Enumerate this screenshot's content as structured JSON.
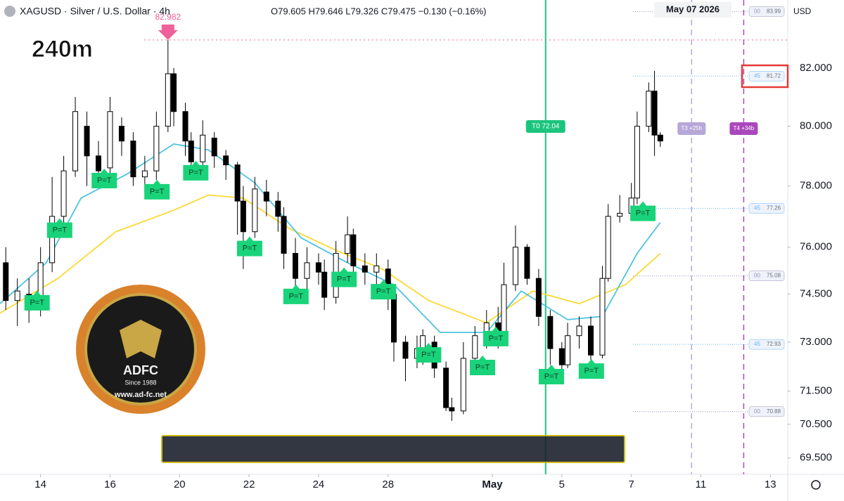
{
  "chart_data": {
    "type": "candlestick",
    "title": "XAGUSD · Silver / U.S. Dollar · 4h",
    "subtitle": "O79.605 H79.646 L79.326 C79.475 −0.130 (−0.16%)",
    "timeframe_label": "240m",
    "date_label": "May 07 2026",
    "currency": "USD",
    "log_scale": true,
    "xlim": [
      0,
      136
    ],
    "ylim": [
      69.02,
      84.4
    ],
    "xticks": [
      {
        "value": 7,
        "label": "14"
      },
      {
        "value": 19,
        "label": "16"
      },
      {
        "value": 31,
        "label": "20"
      },
      {
        "value": 43,
        "label": "22"
      },
      {
        "value": 55,
        "label": "24"
      },
      {
        "value": 67,
        "label": "28"
      },
      {
        "value": 85,
        "label": "May"
      },
      {
        "value": 97,
        "label": "5"
      },
      {
        "value": 109,
        "label": "7"
      },
      {
        "value": 121,
        "label": "11"
      },
      {
        "value": 133,
        "label": "13"
      }
    ],
    "yticks": [
      {
        "value": 82,
        "label": "82.000"
      },
      {
        "value": 80,
        "label": "80.000"
      },
      {
        "value": 78,
        "label": "78.000"
      },
      {
        "value": 76,
        "label": "76.000"
      },
      {
        "value": 74.5,
        "label": "74.500"
      },
      {
        "value": 73,
        "label": "73.000"
      },
      {
        "value": 71.5,
        "label": "71.500"
      },
      {
        "value": 70.5,
        "label": "70.500"
      },
      {
        "value": 69.5,
        "label": "69.500"
      }
    ],
    "x": [
      1,
      3,
      5,
      7,
      9,
      11,
      13,
      15,
      17,
      19,
      21,
      23,
      25,
      27,
      29,
      30,
      32,
      33,
      35,
      37,
      39,
      41,
      42,
      44,
      46,
      48,
      49,
      51,
      53,
      55,
      56,
      58,
      60,
      61,
      63,
      65,
      67,
      68,
      70,
      72,
      73,
      75,
      77,
      78,
      80,
      82,
      84,
      86,
      87,
      89,
      91,
      93,
      95,
      97,
      98,
      100,
      102,
      104,
      105,
      107,
      109,
      110,
      112,
      113,
      114
    ],
    "open": [
      75.5,
      74.3,
      74.5,
      74.2,
      75.5,
      77,
      78.5,
      80,
      79,
      78.6,
      80,
      79.5,
      78.3,
      78.5,
      80,
      81.8,
      80.5,
      79.5,
      78.8,
      79.6,
      79,
      78.7,
      77.5,
      76.5,
      77.8,
      77.5,
      77,
      75.8,
      75,
      75.5,
      75.2,
      74.4,
      75.8,
      76.4,
      75.4,
      75.2,
      75.3,
      74.5,
      73,
      72.5,
      72.8,
      73,
      72.2,
      71,
      70.9,
      72.5,
      73.2,
      73.6,
      73.1,
      74.8,
      76,
      75,
      73.8,
      72.8,
      72.3,
      73.2,
      73.5,
      72.6,
      75,
      77,
      77.1,
      77.6,
      80,
      81.2,
      79.7
    ],
    "high": [
      76,
      75,
      75,
      76,
      78.3,
      79,
      81,
      80.5,
      79.5,
      81,
      80.3,
      79.8,
      79,
      80.5,
      82.98,
      82,
      80.8,
      79.8,
      80.2,
      79.8,
      79.2,
      78.8,
      78,
      78.3,
      78.2,
      77.8,
      77.3,
      76.3,
      76,
      75.8,
      75.6,
      76.2,
      77,
      76.6,
      75.8,
      75.8,
      75.6,
      74.8,
      73.2,
      73.2,
      73.4,
      73.2,
      72.4,
      71.3,
      73,
      73.5,
      74,
      74.1,
      75.5,
      76.7,
      76.1,
      75.3,
      74,
      73,
      73.6,
      73.8,
      73.8,
      75.4,
      77.4,
      77.7,
      78.1,
      80.5,
      81.5,
      81.9,
      79.8
    ],
    "low": [
      74,
      73.5,
      73.6,
      73.8,
      75.2,
      76.8,
      78.3,
      78,
      78,
      78.3,
      79,
      78,
      77.8,
      78.2,
      79.8,
      80,
      79,
      78.6,
      78.5,
      78.6,
      78.2,
      76.4,
      75.3,
      76.3,
      77,
      76.5,
      75.3,
      74.2,
      74.3,
      74.8,
      74,
      74.2,
      75.5,
      75,
      74.8,
      74.8,
      74,
      72.4,
      71.8,
      72.2,
      72.3,
      71.9,
      70.9,
      70.6,
      70.8,
      72.2,
      72.8,
      72.8,
      72.9,
      74.6,
      74.8,
      73.5,
      72.3,
      72,
      72.2,
      72.8,
      72.4,
      72.5,
      74.9,
      76.8,
      76.9,
      77.4,
      79.8,
      79,
      79.3
    ],
    "close": [
      74.3,
      74.6,
      74.0,
      75.5,
      77,
      78.5,
      80.5,
      79,
      78.5,
      80.5,
      79.5,
      78.3,
      78.5,
      80,
      81.8,
      80.5,
      79.5,
      78.8,
      79.7,
      79,
      78.7,
      77.5,
      76.5,
      77.9,
      77.5,
      77,
      75.8,
      75,
      75.5,
      75.2,
      74.4,
      75.8,
      76.4,
      75.4,
      75.2,
      75.4,
      74.5,
      73,
      72.5,
      72.8,
      73.2,
      72.2,
      71,
      70.9,
      72.5,
      73.2,
      73.6,
      73.1,
      74.8,
      76,
      75,
      73.8,
      72.8,
      72.3,
      73.2,
      73.5,
      72.6,
      75,
      77,
      77.1,
      77.6,
      80,
      81.2,
      79.7,
      79.5
    ],
    "series": [
      {
        "color": "#fdd835",
        "x": [
          0,
          10,
          20,
          30,
          36,
          42,
          50,
          58,
          66,
          74,
          84,
          92,
          100,
          108,
          114
        ],
        "values": [
          73.9,
          75.0,
          76.5,
          77.2,
          77.7,
          77.6,
          76.6,
          75.9,
          75.3,
          74.3,
          73.6,
          74.6,
          74.2,
          74.8,
          75.8
        ]
      },
      {
        "color": "#4dc3e0",
        "x": [
          0,
          8,
          14,
          22,
          30,
          36,
          44,
          52,
          60,
          68,
          76,
          84,
          90,
          98,
          104,
          110,
          114
        ],
        "values": [
          74.2,
          75.5,
          77.6,
          78.4,
          79.4,
          79.2,
          78.1,
          76.3,
          75.5,
          74.8,
          73.3,
          73.3,
          74.6,
          73.7,
          73.8,
          75.8,
          76.8
        ]
      }
    ],
    "peak": {
      "x": 29,
      "value": 82.982,
      "color": "#f0609a"
    },
    "levels": [
      {
        "tag": "00",
        "value": 83.99,
        "color": "#9e8fb8"
      },
      {
        "tag": "45",
        "value": 81.72,
        "color": "#64b5f6"
      },
      {
        "tag": "45",
        "value": 77.26,
        "color": "#64b5f6"
      },
      {
        "tag": "00",
        "value": 75.08,
        "color": "#9e8fb8"
      },
      {
        "tag": "45",
        "value": 72.93,
        "color": "#64b5f6"
      },
      {
        "tag": "00",
        "value": 70.88,
        "color": "#9e8fb8"
      }
    ],
    "markers": [
      {
        "text": "T0 72.04",
        "x": 94.2,
        "color": "#1bc47d"
      },
      {
        "text": "T3 +25b",
        "x": 119.4,
        "color": "#b7a7d8"
      },
      {
        "text": "T4 +34b",
        "x": 128.4,
        "color": "#ab47bc"
      }
    ],
    "annotations": [
      {
        "text": "P=T",
        "x": 18,
        "y": 78.2
      },
      {
        "text": "P=T",
        "x": 10.3,
        "y": 76.57
      },
      {
        "text": "P=T",
        "x": 27.1,
        "y": 77.83
      },
      {
        "text": "P=T",
        "x": 33.8,
        "y": 78.46
      },
      {
        "text": "P=T",
        "x": 43.1,
        "y": 75.98
      },
      {
        "text": "P=T",
        "x": 51.1,
        "y": 74.45
      },
      {
        "text": "P=T",
        "x": 59.4,
        "y": 74.99
      },
      {
        "text": "P=T",
        "x": 66.2,
        "y": 74.6
      },
      {
        "text": "P=T",
        "x": 74,
        "y": 72.63
      },
      {
        "text": "P=T",
        "x": 83.3,
        "y": 72.24
      },
      {
        "text": "P=T",
        "x": 85.6,
        "y": 73.13
      },
      {
        "text": "P=T",
        "x": 95.2,
        "y": 71.96
      },
      {
        "text": "P=T",
        "x": 102.1,
        "y": 72.13
      },
      {
        "text": "P=T",
        "x": 111,
        "y": 77.12
      },
      {
        "text": "P=T",
        "x": 6.4,
        "y": 74.25
      }
    ],
    "logo": {
      "name": "ADFC",
      "since": "Since 1988",
      "site": "www.ad-fc.net"
    }
  }
}
